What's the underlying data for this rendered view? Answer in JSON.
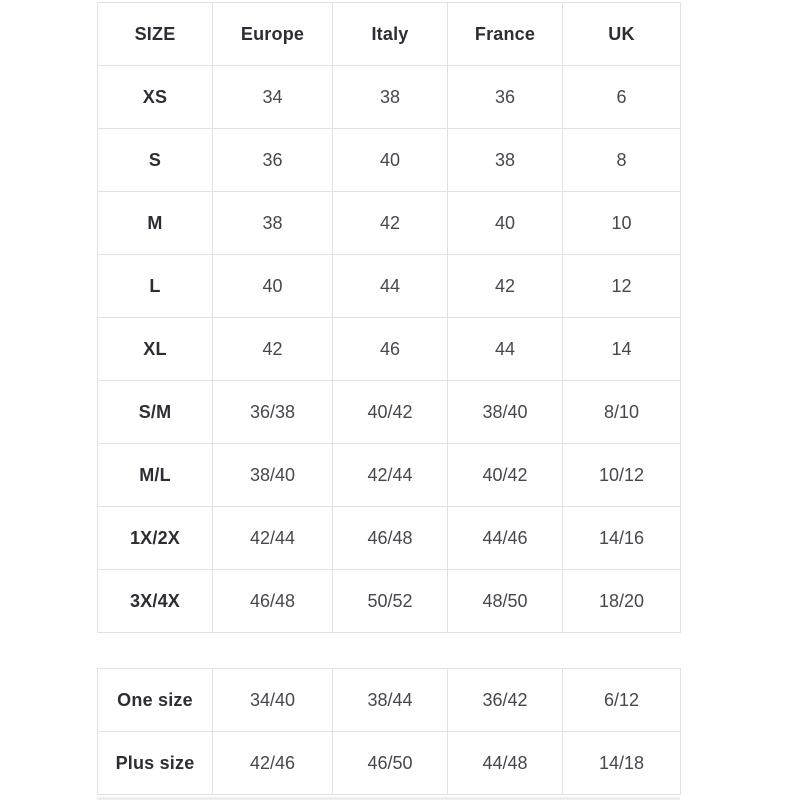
{
  "colors": {
    "background": "#ffffff",
    "border": "#e2e2e2",
    "header_text": "#2d2d35",
    "cell_text": "#47474f"
  },
  "size_table": {
    "headers": [
      "SIZE",
      "Europe",
      "Italy",
      "France",
      "UK"
    ],
    "rows": [
      {
        "label": "XS",
        "values": [
          "34",
          "38",
          "36",
          "6"
        ]
      },
      {
        "label": "S",
        "values": [
          "36",
          "40",
          "38",
          "8"
        ]
      },
      {
        "label": "M",
        "values": [
          "38",
          "42",
          "40",
          "10"
        ]
      },
      {
        "label": "L",
        "values": [
          "40",
          "44",
          "42",
          "12"
        ]
      },
      {
        "label": "XL",
        "values": [
          "42",
          "46",
          "44",
          "14"
        ]
      },
      {
        "label": "S/M",
        "values": [
          "36/38",
          "40/42",
          "38/40",
          "8/10"
        ]
      },
      {
        "label": "M/L",
        "values": [
          "38/40",
          "42/44",
          "40/42",
          "10/12"
        ]
      },
      {
        "label": "1X/2X",
        "values": [
          "42/44",
          "46/48",
          "44/46",
          "14/16"
        ]
      },
      {
        "label": "3X/4X",
        "values": [
          "46/48",
          "50/52",
          "48/50",
          "18/20"
        ]
      }
    ]
  },
  "special_table": {
    "rows": [
      {
        "label": "One size",
        "values": [
          "34/40",
          "38/44",
          "36/42",
          "6/12"
        ]
      },
      {
        "label": "Plus size",
        "values": [
          "42/46",
          "46/50",
          "44/48",
          "14/18"
        ]
      }
    ]
  }
}
